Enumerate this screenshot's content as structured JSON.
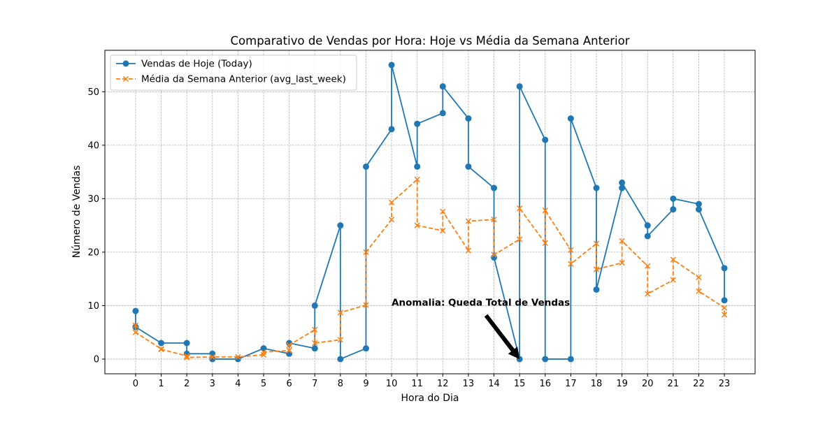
{
  "chart_data": {
    "type": "line",
    "title": "Comparativo de Vendas por Hora: Hoje vs Média da Semana Anterior",
    "xlabel": "Hora do Dia",
    "ylabel": "Número de Vendas",
    "xlim": [
      -1.2,
      24.2
    ],
    "ylim": [
      -2.75,
      57.75
    ],
    "xticks": [
      0,
      1,
      2,
      3,
      4,
      5,
      6,
      7,
      8,
      9,
      10,
      11,
      12,
      13,
      14,
      15,
      16,
      17,
      18,
      19,
      20,
      21,
      22,
      23
    ],
    "yticks": [
      0,
      10,
      20,
      30,
      40,
      50
    ],
    "grid": true,
    "legend_position": "top-left",
    "series": [
      {
        "name": "Vendas de Hoje (Today)",
        "color": "#1f77b4",
        "marker": "circle",
        "linestyle": "solid",
        "x": [
          0,
          0,
          0,
          1,
          2,
          2,
          3,
          3,
          4,
          5,
          6,
          6,
          7,
          7,
          8,
          8,
          9,
          9,
          10,
          10,
          11,
          11,
          12,
          12,
          13,
          13,
          14,
          14,
          15,
          15,
          16,
          16,
          17,
          17,
          18,
          18,
          19,
          19,
          20,
          20,
          21,
          21,
          22,
          22,
          23,
          23
        ],
        "y": [
          9,
          6,
          6,
          3,
          3,
          1,
          1,
          0,
          0,
          2,
          1,
          3,
          2,
          10,
          25,
          0,
          2,
          36,
          43,
          55,
          36,
          44,
          46,
          51,
          45,
          36,
          32,
          19,
          0,
          51,
          41,
          0,
          0,
          45,
          32,
          13,
          32,
          33,
          25,
          23,
          28,
          30,
          29,
          28,
          17,
          11
        ]
      },
      {
        "name": "Média da Semana Anterior (avg_last_week)",
        "color": "#ff7f0e",
        "marker": "x",
        "linestyle": "dashed",
        "x": [
          0,
          0,
          1,
          1,
          2,
          2,
          3,
          3,
          4,
          4,
          5,
          5,
          6,
          6,
          7,
          7,
          8,
          8,
          9,
          9,
          10,
          10,
          11,
          11,
          12,
          12,
          13,
          13,
          14,
          14,
          15,
          15,
          16,
          16,
          17,
          17,
          18,
          18,
          19,
          19,
          20,
          20,
          21,
          21,
          22,
          22,
          23,
          23
        ],
        "y": [
          6.3,
          5,
          1.9,
          1.8,
          0.6,
          0.3,
          0.4,
          0.4,
          0.4,
          0.4,
          0.8,
          1.3,
          1.6,
          2.6,
          5.5,
          3,
          3.6,
          8.7,
          10.1,
          20,
          26.1,
          29.3,
          33.6,
          25,
          24,
          27.6,
          20.3,
          25.8,
          26.1,
          19.5,
          22.4,
          28.2,
          21.7,
          27.8,
          20.4,
          17.8,
          21.6,
          16.8,
          18,
          22.1,
          17.4,
          12.2,
          14.8,
          18.6,
          15.3,
          12.7,
          9.6,
          8.3
        ]
      }
    ],
    "annotations": [
      {
        "text": "Anomalia: Queda Total de Vendas",
        "x": 15,
        "y": 0,
        "text_x": 10,
        "text_y": 10
      }
    ]
  }
}
